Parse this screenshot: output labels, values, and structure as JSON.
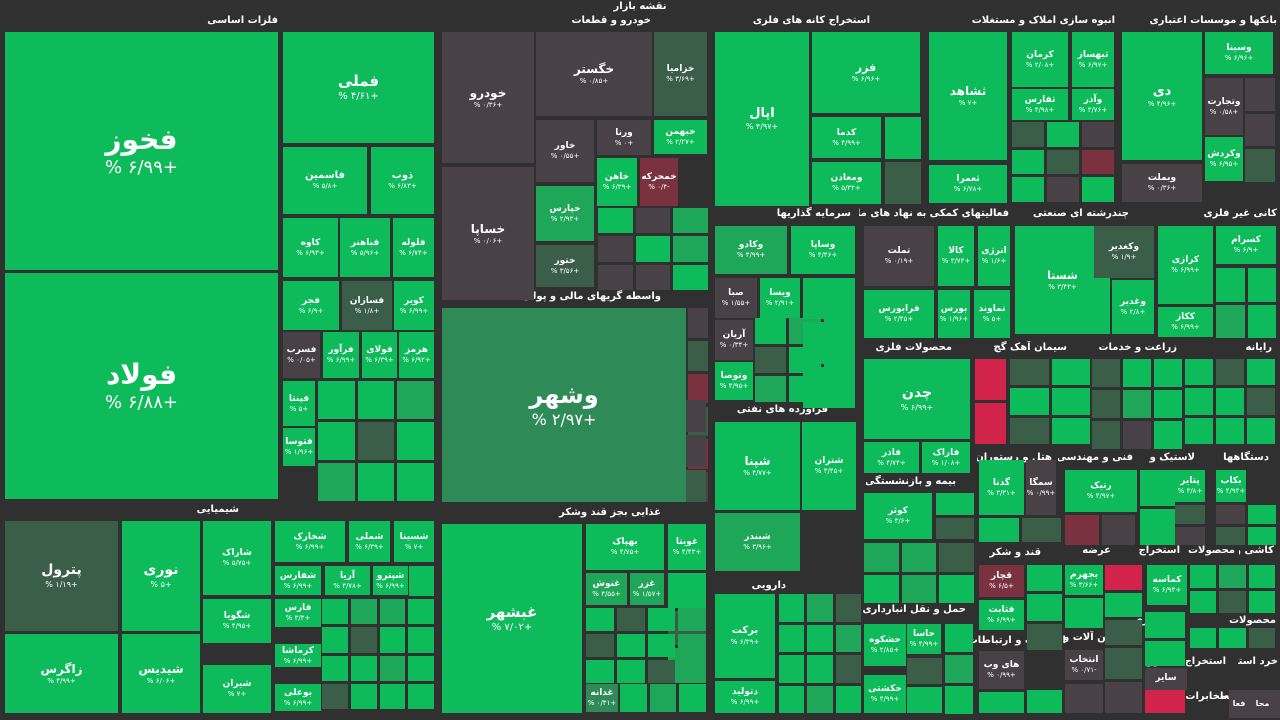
{
  "title": "نقشه بازار",
  "colors": {
    "dark": "#484246",
    "dkgreen": "#3b5e48",
    "mid": "#2e8b57",
    "green": "#1ea659",
    "bright": "#0dbb5b",
    "red": "#7b3240",
    "brightred": "#d2234a"
  },
  "sectors": [
    {
      "name": "فلزات اساسی"
    },
    {
      "name": "خودرو و قطعات"
    },
    {
      "name": "استخراج کانه های فلزی"
    },
    {
      "name": "انبوه سازی املاک و مستغلات"
    },
    {
      "name": "بانکها و موسسات اعتباری"
    },
    {
      "name": "سرمایه گذاریها"
    },
    {
      "name": "فعالیتهای کمکی به نهاد های مالی"
    },
    {
      "name": "چندرشته ای صنعتی"
    },
    {
      "name": "کانی غیر فلزی"
    },
    {
      "name": "واسطه گریهای مالی و پولی"
    },
    {
      "name": "محصولات فلزی"
    },
    {
      "name": "سیمان آهک گچ"
    },
    {
      "name": "زراعت و خدمات"
    },
    {
      "name": "رایانه"
    },
    {
      "name": "فراورده های نفتی"
    },
    {
      "name": "هتل و رستوران"
    },
    {
      "name": "فنی و مهندسی"
    },
    {
      "name": "لاستیک و"
    },
    {
      "name": "دستگاهها"
    },
    {
      "name": "بیمه و بازنشستگی"
    },
    {
      "name": "شیمیایی"
    },
    {
      "name": "غذایی بجز قند وشکر"
    },
    {
      "name": "قند و شکر"
    },
    {
      "name": "عرضه"
    },
    {
      "name": "استخراج"
    },
    {
      "name": "محصولات"
    },
    {
      "name": "کاشی و"
    },
    {
      "name": "دارویی"
    },
    {
      "name": "حمل و نقل انبارداری و"
    },
    {
      "name": "اطلاعات و ارتباطات"
    },
    {
      "name": "ماشین آلات و"
    },
    {
      "name": "پیمانکاری"
    },
    {
      "name": "محصولات"
    },
    {
      "name": "استخراج"
    },
    {
      "name": "استخراج"
    },
    {
      "name": "خرد استخر"
    },
    {
      "name": "مخابرات"
    },
    {
      "name": "فعا"
    },
    {
      "name": "محا"
    }
  ],
  "chart_data": {
    "type": "heatmap",
    "title": "نقشه بازار",
    "tiles": [
      {
        "sector": "فلزات اساسی",
        "symbol": "فخوز",
        "change": "+۶/۹۹ %"
      },
      {
        "sector": "فلزات اساسی",
        "symbol": "فولاد",
        "change": "+۶/۸۸ %"
      },
      {
        "sector": "فلزات اساسی",
        "symbol": "فملی",
        "change": "+۴/۶۱ %"
      },
      {
        "sector": "فلزات اساسی",
        "symbol": "فاسمین",
        "change": "+۵/۸ %"
      },
      {
        "sector": "فلزات اساسی",
        "symbol": "ذوب",
        "change": "+۶/۸۳ %"
      },
      {
        "sector": "فلزات اساسی",
        "symbol": "کاوه",
        "change": "+۶/۹۳ %"
      },
      {
        "sector": "فلزات اساسی",
        "symbol": "فباهنر",
        "change": "+۵/۹۶ %"
      },
      {
        "sector": "فلزات اساسی",
        "symbol": "فلوله",
        "change": "+۶/۷۴ %"
      },
      {
        "sector": "فلزات اساسی",
        "symbol": "فجر",
        "change": "+۶/۹ %"
      },
      {
        "sector": "فلزات اساسی",
        "symbol": "فسازان",
        "change": "+۱/۸ %"
      },
      {
        "sector": "فلزات اساسی",
        "symbol": "کویر",
        "change": "+۶/۹۹ %"
      },
      {
        "sector": "فلزات اساسی",
        "symbol": "فسرب",
        "change": "+۰/۰۵ %"
      },
      {
        "sector": "فلزات اساسی",
        "symbol": "فرآور",
        "change": "+۶/۹۹ %"
      },
      {
        "sector": "فلزات اساسی",
        "symbol": "فولای",
        "change": "+۶/۳۹ %"
      },
      {
        "sector": "فلزات اساسی",
        "symbol": "هرمز",
        "change": "+۶/۹۲ %"
      },
      {
        "sector": "فلزات اساسی",
        "symbol": "فپنتا",
        "change": "+۵ %"
      },
      {
        "sector": "فلزات اساسی",
        "symbol": "فتوسا",
        "change": "+۱/۹۶ %"
      },
      {
        "sector": "خودرو و قطعات",
        "symbol": "خودرو",
        "change": "+۰/۳۶ %"
      },
      {
        "sector": "خودرو و قطعات",
        "symbol": "خساپا",
        "change": "+۰/۰۶ %"
      },
      {
        "sector": "خودرو و قطعات",
        "symbol": "خگستر",
        "change": "+۰/۸۵ %"
      },
      {
        "sector": "خودرو و قطعات",
        "symbol": "خزامیا",
        "change": "+۳/۶۹ %"
      },
      {
        "sector": "خودرو و قطعات",
        "symbol": "خاور",
        "change": "+۰/۵۵ %"
      },
      {
        "sector": "خودرو و قطعات",
        "symbol": "ورنا",
        "change": "+۰ %"
      },
      {
        "sector": "خودرو و قطعات",
        "symbol": "خبهمن",
        "change": "+۲/۲۷ %"
      },
      {
        "sector": "خودرو و قطعات",
        "symbol": "خاهن",
        "change": "+۶/۳۹ %"
      },
      {
        "sector": "خودرو و قطعات",
        "symbol": "خمحرکه",
        "change": "-۰/۴ %"
      },
      {
        "sector": "خودرو و قطعات",
        "symbol": "خپارس",
        "change": "+۲/۹۳ %"
      },
      {
        "sector": "خودرو و قطعات",
        "symbol": "ختور",
        "change": "+۳/۵۶ %"
      },
      {
        "sector": "استخراج کانه های فلزی",
        "symbol": "اپال",
        "change": "+۴/۹۷ %"
      },
      {
        "sector": "استخراج کانه های فلزی",
        "symbol": "فزر",
        "change": "+۶/۹۶ %"
      },
      {
        "sector": "استخراج کانه های فلزی",
        "symbol": "کدما",
        "change": "+۴/۹۹ %"
      },
      {
        "sector": "استخراج کانه های فلزی",
        "symbol": "ومعادن",
        "change": "+۵/۳۲ %"
      },
      {
        "sector": "انبوه سازی املاک و مستغلات",
        "symbol": "ثشاهد",
        "change": "+۷ %"
      },
      {
        "sector": "انبوه سازی املاک و مستغلات",
        "symbol": "کرمان",
        "change": "+۲/۰۸ %"
      },
      {
        "sector": "انبوه سازی املاک و مستغلات",
        "symbol": "ثبهساز",
        "change": "+۶/۹۷ %"
      },
      {
        "sector": "انبوه سازی املاک و مستغلات",
        "symbol": "ثفارس",
        "change": "+۴/۹۸ %"
      },
      {
        "sector": "انبوه سازی املاک و مستغلات",
        "symbol": "وآذر",
        "change": "+۳/۷۶ %"
      },
      {
        "sector": "انبوه سازی املاک و مستغلات",
        "symbol": "ثعمرا",
        "change": "+۶/۷۸ %"
      },
      {
        "sector": "بانکها و موسسات اعتباری",
        "symbol": "دی",
        "change": "+۴/۹۶ %"
      },
      {
        "sector": "بانکها و موسسات اعتباری",
        "symbol": "وسینا",
        "change": "+۶/۹۶ %"
      },
      {
        "sector": "بانکها و موسسات اعتباری",
        "symbol": "وتجارت",
        "change": "+۰/۵۸ %"
      },
      {
        "sector": "بانکها و موسسات اعتباری",
        "symbol": "وکردش",
        "change": "+۶/۹۵ %"
      },
      {
        "sector": "بانکها و موسسات اعتباری",
        "symbol": "وبملت",
        "change": "+۰/۳۶ %"
      },
      {
        "sector": "سرمایه گذاریها",
        "symbol": "وکادو",
        "change": "+۴/۹۹ %"
      },
      {
        "sector": "سرمایه گذاریها",
        "symbol": "وساپا",
        "change": "+۴/۴۶ %"
      },
      {
        "sector": "سرمایه گذاریها",
        "symbol": "صبا",
        "change": "+۱/۵۵ %"
      },
      {
        "sector": "سرمایه گذاریها",
        "symbol": "ویسا",
        "change": "+۲/۹۱ %"
      },
      {
        "sector": "سرمایه گذاریها",
        "symbol": "آریان",
        "change": "+۰/۳۴ %"
      },
      {
        "sector": "سرمایه گذاریها",
        "symbol": "وتوصا",
        "change": "+۴/۹۵ %"
      },
      {
        "sector": "فعالیتهای کمکی به نهاد های مالی",
        "symbol": "تملت",
        "change": "+۰/۱۹ %"
      },
      {
        "sector": "فعالیتهای کمکی به نهاد های مالی",
        "symbol": "کالا",
        "change": "+۳/۷۴ %"
      },
      {
        "sector": "فعالیتهای کمکی به نهاد های مالی",
        "symbol": "انرژی",
        "change": "+۱/۶ %"
      },
      {
        "sector": "فعالیتهای کمکی به نهاد های مالی",
        "symbol": "فرابورس",
        "change": "+۲/۴۵ %"
      },
      {
        "sector": "فعالیتهای کمکی به نهاد های مالی",
        "symbol": "بورس",
        "change": "+۱/۹۶ %"
      },
      {
        "sector": "فعالیتهای کمکی به نهاد های مالی",
        "symbol": "تماوند",
        "change": "+۵ %"
      },
      {
        "sector": "چندرشته ای صنعتی",
        "symbol": "شستا",
        "change": "+۳/۴۳ %"
      },
      {
        "sector": "چندرشته ای صنعتی",
        "symbol": "وکغدیر",
        "change": "+۱/۹ %"
      },
      {
        "sector": "چندرشته ای صنعتی",
        "symbol": "وغدیر",
        "change": "+۲/۸ %"
      },
      {
        "sector": "کانی غیر فلزی",
        "symbol": "کرازی",
        "change": "+۶/۹۹ %"
      },
      {
        "sector": "کانی غیر فلزی",
        "symbol": "کسرام",
        "change": "+۶/۹ %"
      },
      {
        "sector": "کانی غیر فلزی",
        "symbol": "ککاز",
        "change": "+۶/۹۹ %"
      },
      {
        "sector": "واسطه گریهای مالی و پولی",
        "symbol": "وشهر",
        "change": "+۲/۹۷ %"
      },
      {
        "sector": "محصولات فلزی",
        "symbol": "چدن",
        "change": "+۶/۹۹ %"
      },
      {
        "sector": "محصولات فلزی",
        "symbol": "فاذر",
        "change": "+۴/۷۴ %"
      },
      {
        "sector": "محصولات فلزی",
        "symbol": "فاراک",
        "change": "+۱/۰۸ %"
      },
      {
        "sector": "فراورده های نفتی",
        "symbol": "شپنا",
        "change": "+۴/۷۷ %"
      },
      {
        "sector": "فراورده های نفتی",
        "symbol": "شتران",
        "change": "+۳/۴۵ %"
      },
      {
        "sector": "فراورده های نفتی",
        "symbol": "شبندر",
        "change": "+۳/۹۶ %"
      },
      {
        "sector": "هتل و رستوران",
        "symbol": "گدنا",
        "change": "+۳/۳۱ %"
      },
      {
        "sector": "هتل و رستوران",
        "symbol": "سمگا",
        "change": "+۰/۹۹ %"
      },
      {
        "sector": "فنی و مهندسی",
        "symbol": "رتیک",
        "change": "+۴/۹۷ %"
      },
      {
        "sector": "لاستیک و",
        "symbol": "پتایر",
        "change": "+۳/۸ %"
      },
      {
        "sector": "دستگاهها",
        "symbol": "بکاب",
        "change": "+۴/۹۴ %"
      },
      {
        "sector": "بیمه و بازنشستگی",
        "symbol": "کوثر",
        "change": "+۳/۶ %"
      },
      {
        "sector": "شیمیایی",
        "symbol": "پترول",
        "change": "+۱/۱۹ %"
      },
      {
        "sector": "شیمیایی",
        "symbol": "نوری",
        "change": "+۵ %"
      },
      {
        "sector": "شیمیایی",
        "symbol": "زاگرس",
        "change": "+۴/۹۹ %"
      },
      {
        "sector": "شیمیایی",
        "symbol": "شیدیس",
        "change": "+۶/۰۶ %"
      },
      {
        "sector": "شیمیایی",
        "symbol": "شاراک",
        "change": "+۵/۷۵ %"
      },
      {
        "sector": "شیمیایی",
        "symbol": "شخارک",
        "change": "+۶/۹۹ %"
      },
      {
        "sector": "شیمیایی",
        "symbol": "شملی",
        "change": "+۶/۳۹ %"
      },
      {
        "sector": "شیمیایی",
        "symbol": "شسینا",
        "change": "+۷ %"
      },
      {
        "sector": "شیمیایی",
        "symbol": "شگویا",
        "change": "+۴/۹۵ %"
      },
      {
        "sector": "شیمیایی",
        "symbol": "شفارس",
        "change": "+۶/۹۹ %"
      },
      {
        "sector": "شیمیایی",
        "symbol": "آریا",
        "change": "+۴/۷۸ %"
      },
      {
        "sector": "شیمیایی",
        "symbol": "شپترو",
        "change": "+۶/۹۹ %"
      },
      {
        "sector": "شیمیایی",
        "symbol": "فارس",
        "change": "+۳/۳ %"
      },
      {
        "sector": "شیمیایی",
        "symbol": "شیران",
        "change": "+۷ %"
      },
      {
        "sector": "شیمیایی",
        "symbol": "کرماشا",
        "change": "+۶/۹۹ %"
      },
      {
        "sector": "شیمیایی",
        "symbol": "بوعلی",
        "change": "+۶/۹۹ %"
      },
      {
        "sector": "غذایی بجز قند وشکر",
        "symbol": "غبشهر",
        "change": "+۷/۰۲ %"
      },
      {
        "sector": "غذایی بجز قند وشکر",
        "symbol": "بهپاک",
        "change": "+۴/۷۵ %"
      },
      {
        "sector": "غذایی بجز قند وشکر",
        "symbol": "غویتا",
        "change": "+۴/۴۳ %"
      },
      {
        "sector": "غذایی بجز قند وشکر",
        "symbol": "غنوش",
        "change": "+۴/۵۵ %"
      },
      {
        "sector": "غذایی بجز قند وشکر",
        "symbol": "غزر",
        "change": "+۱/۵۷ %"
      },
      {
        "sector": "غذایی بجز قند وشکر",
        "symbol": "غدانه",
        "change": "+۰/۴۱ %"
      },
      {
        "sector": "دارویی",
        "symbol": "برکت",
        "change": "+۶/۳۹ %"
      },
      {
        "sector": "دارویی",
        "symbol": "دتولید",
        "change": "+۶/۹۹ %"
      },
      {
        "sector": "حمل و نقل انبارداری و",
        "symbol": "حشکوه",
        "change": "+۲/۸۵ %"
      },
      {
        "sector": "حمل و نقل انبارداری و",
        "symbol": "حاسا",
        "change": "+۴/۹۹ %"
      },
      {
        "sector": "حمل و نقل انبارداری و",
        "symbol": "حکشتی",
        "change": "+۴/۹۹ %"
      },
      {
        "sector": "قند و شکر",
        "symbol": "قچار",
        "change": "+۶/۵ %"
      },
      {
        "sector": "قند و شکر",
        "symbol": "قثابت",
        "change": "+۶/۹۹ %"
      },
      {
        "sector": "اطلاعات و ارتباطات",
        "symbol": "های وب",
        "change": "+۰/۹۹ %"
      },
      {
        "sector": "عرضه",
        "symbol": "بجهرم",
        "change": "+۳/۶۶ %"
      },
      {
        "sector": "استخراج",
        "symbol": "کماسه",
        "change": "+۶/۹۴ %"
      },
      {
        "sector": "ماشین آلات و",
        "symbol": "انتخاب",
        "change": "-۰/۷۱ %"
      },
      {
        "sector": "پیمانکاری",
        "symbol": "سایر"
      },
      {
        "sector": "مخابرات",
        "symbol": "محا"
      },
      {
        "sector": "مخابرات",
        "symbol": "فعا"
      }
    ]
  }
}
